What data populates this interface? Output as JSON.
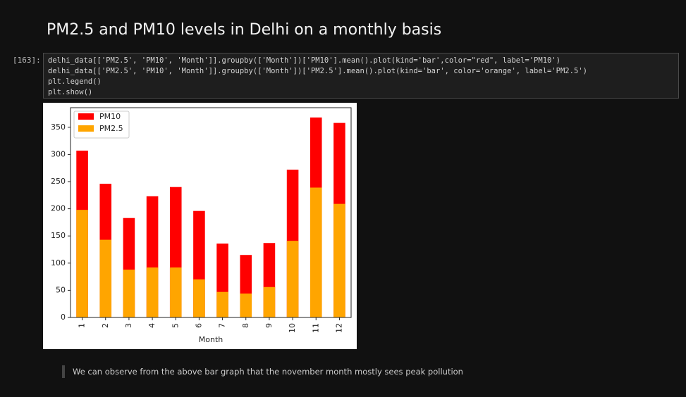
{
  "heading": "PM2.5 and PM10 levels in Delhi on a monthly basis",
  "cell": {
    "prompt": "[163]:",
    "code": [
      "delhi_data[['PM2.5', 'PM10', 'Month']].groupby(['Month'])['PM10'].mean().plot(kind='bar',color=\"red\", label='PM10')",
      "delhi_data[['PM2.5', 'PM10', 'Month']].groupby(['Month'])['PM2.5'].mean().plot(kind='bar', color='orange', label='PM2.5')",
      "plt.legend()",
      "plt.show()"
    ]
  },
  "chart_data": {
    "type": "bar",
    "xlabel": "Month",
    "categories": [
      "1",
      "2",
      "3",
      "4",
      "5",
      "6",
      "7",
      "8",
      "9",
      "10",
      "11",
      "12"
    ],
    "series": [
      {
        "name": "PM10",
        "color": "#ff0000",
        "values": [
          307,
          246,
          183,
          223,
          240,
          196,
          136,
          115,
          137,
          272,
          368,
          358
        ]
      },
      {
        "name": "PM2.5",
        "color": "#ffa500",
        "values": [
          198,
          143,
          88,
          92,
          92,
          70,
          47,
          44,
          56,
          141,
          239,
          209
        ]
      }
    ],
    "ylim": [
      0,
      386
    ],
    "yticks": [
      0,
      50,
      100,
      150,
      200,
      250,
      300,
      350
    ],
    "legend": "upper-left"
  },
  "note": "We can observe from the above bar graph that the november month mostly sees peak pollution"
}
